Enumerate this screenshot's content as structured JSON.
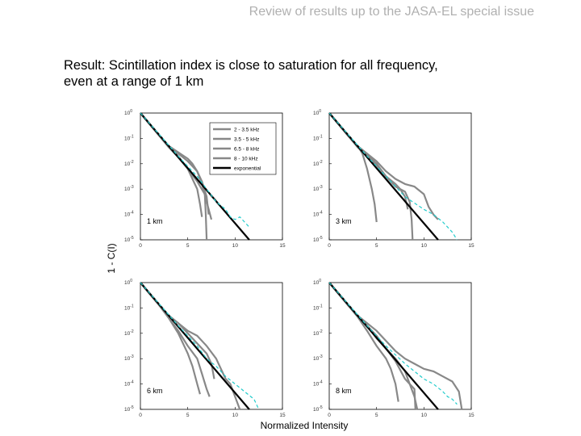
{
  "slide": {
    "header": "Review of results up to the JASA-EL special issue",
    "result_line1": "Result: Scintillation index is close to saturation for all frequency,",
    "result_line2": "even at a range of 1 km"
  },
  "figure": {
    "ylabel": "1 - C(I)",
    "xlabel": "Normalized Intensity",
    "colors": {
      "2-3.5 kHz": "#1f2bd6",
      "3.5-5 kHz": "#22dd22",
      "6.5-8 kHz": "#ee22ee",
      "8-10 kHz": "#dd1111",
      "exponential": "#000000",
      "reference": "#22cccc"
    }
  },
  "chart_data": [
    {
      "type": "line",
      "annotation": "1 km",
      "legend": [
        "2 - 3.5 kHz",
        "3.5 - 5 kHz",
        "6.5 - 8 kHz",
        "8 - 10 kHz",
        "exponential"
      ],
      "legend_position": "top-right",
      "xlim": [
        0,
        15
      ],
      "ylim_log10": [
        -5,
        0
      ],
      "x_ticks": [
        "0",
        "5",
        "10",
        "15"
      ],
      "y_ticks": [
        "10^0",
        "10^-1",
        "10^-2",
        "10^-3",
        "10^-4",
        "10^-5"
      ],
      "series": [
        {
          "name": "2 - 3.5 kHz",
          "x": [
            0,
            2,
            3,
            4,
            5,
            5.5,
            6,
            6.5,
            7,
            7.5
          ],
          "y_log10": [
            0,
            -0.9,
            -1.3,
            -1.6,
            -1.9,
            -2.1,
            -2.3,
            -2.8,
            -3.5,
            -4.2
          ]
        },
        {
          "name": "3.5 - 5 kHz",
          "x": [
            0,
            2,
            3,
            4,
            5,
            5.5,
            6,
            6.5,
            7,
            7.2
          ],
          "y_log10": [
            0,
            -0.9,
            -1.3,
            -1.55,
            -1.8,
            -2.0,
            -2.3,
            -2.7,
            -3.3,
            -4.0
          ]
        },
        {
          "name": "6.5 - 8 kHz",
          "x": [
            0,
            2,
            3,
            4,
            5,
            5.5,
            6,
            6.3,
            6.5
          ],
          "y_log10": [
            0,
            -0.9,
            -1.35,
            -1.7,
            -2.2,
            -2.6,
            -3.0,
            -3.6,
            -4.1
          ]
        },
        {
          "name": "8 - 10 kHz",
          "x": [
            0,
            2,
            3,
            4,
            5,
            6,
            6.8,
            6.9,
            7
          ],
          "y_log10": [
            0,
            -0.9,
            -1.35,
            -1.75,
            -2.2,
            -2.7,
            -3.2,
            -4.0,
            -5.0
          ]
        },
        {
          "name": "exponential",
          "x": [
            0,
            11.5
          ],
          "y_log10": [
            0,
            -5.0
          ]
        },
        {
          "name": "reference",
          "x": [
            0,
            2,
            4,
            6,
            7,
            8,
            9,
            9.5,
            10,
            10.5,
            11,
            11.5
          ],
          "y_log10": [
            0,
            -0.85,
            -1.7,
            -2.5,
            -3.0,
            -3.5,
            -3.8,
            -4.1,
            -4.2,
            -4.1,
            -4.3,
            -4.5
          ]
        }
      ]
    },
    {
      "type": "line",
      "annotation": "3 km",
      "xlim": [
        0,
        15
      ],
      "ylim_log10": [
        -5,
        0
      ],
      "x_ticks": [
        "0",
        "5",
        "10",
        "15"
      ],
      "y_ticks": [
        "10^0",
        "10^-1",
        "10^-2",
        "10^-3",
        "10^-4",
        "10^-5"
      ],
      "series": [
        {
          "name": "2 - 3.5 kHz",
          "x": [
            0,
            2,
            3,
            3.5,
            4,
            4.5,
            4.8,
            5
          ],
          "y_log10": [
            0,
            -0.9,
            -1.3,
            -1.6,
            -2.2,
            -3.0,
            -3.6,
            -4.3
          ]
        },
        {
          "name": "3.5 - 5 kHz",
          "x": [
            0,
            2,
            3,
            4,
            5,
            6,
            7,
            8,
            9,
            10,
            10.5,
            11,
            11.5
          ],
          "y_log10": [
            0,
            -0.9,
            -1.3,
            -1.6,
            -1.9,
            -2.3,
            -2.6,
            -2.8,
            -2.9,
            -3.2,
            -3.7,
            -4.0,
            -4.2
          ]
        },
        {
          "name": "6.5 - 8 kHz",
          "x": [
            0,
            2,
            3,
            4,
            5,
            6,
            7,
            7.5,
            8,
            8.3
          ],
          "y_log10": [
            0,
            -0.9,
            -1.3,
            -1.65,
            -2.0,
            -2.5,
            -2.8,
            -3.0,
            -3.3,
            -3.8
          ]
        },
        {
          "name": "8 - 10 kHz",
          "x": [
            0,
            2,
            3,
            4,
            5,
            6,
            7,
            8,
            8.5,
            8.7,
            8.8
          ],
          "y_log10": [
            0,
            -0.9,
            -1.35,
            -1.7,
            -2.05,
            -2.5,
            -2.9,
            -3.1,
            -3.5,
            -4.2,
            -5.0
          ]
        },
        {
          "name": "exponential",
          "x": [
            0,
            11.5
          ],
          "y_log10": [
            0,
            -5.0
          ]
        },
        {
          "name": "reference",
          "x": [
            0,
            2,
            4,
            6,
            8,
            10,
            11,
            12,
            12.5,
            13,
            13.5
          ],
          "y_log10": [
            0,
            -0.85,
            -1.7,
            -2.5,
            -3.3,
            -3.8,
            -4.0,
            -4.3,
            -4.5,
            -4.7,
            -5.0
          ]
        }
      ]
    },
    {
      "type": "line",
      "annotation": "6 km",
      "xlim": [
        0,
        15
      ],
      "ylim_log10": [
        -5,
        0
      ],
      "x_ticks": [
        "0",
        "5",
        "10",
        "15"
      ],
      "y_ticks": [
        "10^0",
        "10^-1",
        "10^-2",
        "10^-3",
        "10^-4",
        "10^-5"
      ],
      "series": [
        {
          "name": "2 - 3.5 kHz",
          "x": [
            0,
            2,
            3,
            4,
            5,
            5.5,
            6,
            6.3
          ],
          "y_log10": [
            0,
            -0.9,
            -1.4,
            -2.0,
            -2.8,
            -3.3,
            -4.0,
            -4.4
          ]
        },
        {
          "name": "3.5 - 5 kHz",
          "x": [
            0,
            2,
            3,
            4,
            5,
            6,
            6.5,
            7,
            7.3
          ],
          "y_log10": [
            0,
            -0.9,
            -1.4,
            -1.9,
            -2.5,
            -3.0,
            -3.6,
            -4.2,
            -4.5
          ]
        },
        {
          "name": "6.5 - 8 kHz",
          "x": [
            0,
            2,
            3,
            4,
            5,
            6,
            7,
            7.5,
            7.8
          ],
          "y_log10": [
            0,
            -0.9,
            -1.3,
            -1.6,
            -2.0,
            -2.4,
            -2.8,
            -3.2,
            -3.8
          ]
        },
        {
          "name": "8 - 10 kHz",
          "x": [
            0,
            2,
            3,
            4,
            5,
            6,
            7,
            8,
            9,
            9.5,
            10,
            10.5
          ],
          "y_log10": [
            0,
            -0.9,
            -1.3,
            -1.6,
            -1.9,
            -2.1,
            -2.5,
            -3.0,
            -3.8,
            -4.0,
            -4.5,
            -5.0
          ]
        },
        {
          "name": "exponential",
          "x": [
            0,
            11.5
          ],
          "y_log10": [
            0,
            -5.0
          ]
        },
        {
          "name": "reference",
          "x": [
            0,
            2,
            4,
            6,
            7,
            8,
            9,
            10,
            11,
            12,
            12.5
          ],
          "y_log10": [
            0,
            -0.85,
            -1.7,
            -2.5,
            -3.0,
            -3.3,
            -3.7,
            -4.0,
            -4.3,
            -4.6,
            -5.0
          ]
        }
      ]
    },
    {
      "type": "line",
      "annotation": "8 km",
      "xlim": [
        0,
        15
      ],
      "ylim_log10": [
        -5,
        0
      ],
      "x_ticks": [
        "0",
        "5",
        "10",
        "15"
      ],
      "y_ticks": [
        "10^0",
        "10^-1",
        "10^-2",
        "10^-3",
        "10^-4",
        "10^-5"
      ],
      "series": [
        {
          "name": "2 - 3.5 kHz",
          "x": [
            0,
            2,
            3,
            4,
            5,
            6,
            6.5,
            7,
            7.3
          ],
          "y_log10": [
            0,
            -0.9,
            -1.35,
            -1.9,
            -2.5,
            -3.0,
            -3.4,
            -4.0,
            -4.7
          ]
        },
        {
          "name": "3.5 - 5 kHz",
          "x": [
            0,
            2,
            3,
            4,
            5,
            6,
            7,
            8,
            9,
            9.3
          ],
          "y_log10": [
            0,
            -0.9,
            -1.3,
            -1.7,
            -2.2,
            -2.6,
            -3.0,
            -3.5,
            -4.5,
            -5.0
          ]
        },
        {
          "name": "6.5 - 8 kHz",
          "x": [
            0,
            2,
            3,
            4,
            5,
            6,
            7,
            8,
            9,
            10,
            11,
            12,
            13,
            13.7,
            14
          ],
          "y_log10": [
            0,
            -0.9,
            -1.3,
            -1.6,
            -1.9,
            -2.3,
            -2.7,
            -3.0,
            -3.2,
            -3.4,
            -3.5,
            -3.7,
            -3.9,
            -4.3,
            -5.0
          ]
        },
        {
          "name": "8 - 10 kHz",
          "x": [
            0,
            2,
            3,
            4,
            5,
            6,
            7,
            8,
            9,
            9.1
          ],
          "y_log10": [
            0,
            -0.9,
            -1.3,
            -1.7,
            -2.1,
            -2.6,
            -3.1,
            -3.8,
            -4.2,
            -5.0
          ]
        },
        {
          "name": "exponential",
          "x": [
            0,
            11.5
          ],
          "y_log10": [
            0,
            -5.0
          ]
        },
        {
          "name": "reference",
          "x": [
            0,
            2,
            4,
            6,
            8,
            10,
            11,
            12,
            12.5,
            13,
            13.5
          ],
          "y_log10": [
            0,
            -0.85,
            -1.7,
            -2.5,
            -3.2,
            -3.8,
            -4.0,
            -4.3,
            -4.5,
            -4.6,
            -4.8
          ]
        }
      ]
    }
  ]
}
